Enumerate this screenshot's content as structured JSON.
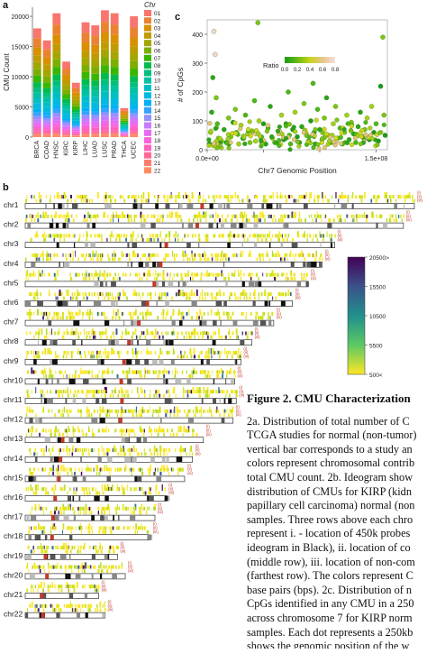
{
  "panels": {
    "a": "a",
    "b": "b",
    "c": "c"
  },
  "chart_data": [
    {
      "type": "bar",
      "stacked": true,
      "categories": [
        "BRCA",
        "COAD",
        "HNSC",
        "KIRC",
        "KIRP",
        "LIHC",
        "LUAD",
        "LUSC",
        "PRAD",
        "THCA",
        "UCEC"
      ],
      "values": [
        18000,
        16000,
        20500,
        12500,
        9000,
        19000,
        18500,
        21000,
        20500,
        4800,
        20000
      ],
      "ylabel": "CMU Count",
      "yticks": [
        "0",
        "5000",
        "10000",
        "15000",
        "20000"
      ],
      "ylim": [
        0,
        21500
      ],
      "legend_title": "Chr",
      "legend_entries": [
        "01",
        "02",
        "03",
        "04",
        "05",
        "06",
        "07",
        "08",
        "09",
        "10",
        "11",
        "12",
        "13",
        "14",
        "15",
        "16",
        "17",
        "18",
        "19",
        "20",
        "21",
        "22"
      ],
      "legend_colors": [
        "#f8766d",
        "#ea8331",
        "#d89000",
        "#c09b00",
        "#a3a500",
        "#7cae00",
        "#39b600",
        "#00bb4e",
        "#00bf7d",
        "#00c1a3",
        "#00bfc4",
        "#00bae0",
        "#00b0f6",
        "#35a2ff",
        "#9590ff",
        "#c77cff",
        "#e76bf3",
        "#fa62db",
        "#ff62bc",
        "#ff6a98",
        "#ff7c6f",
        "#ff8b63"
      ]
    },
    {
      "type": "scatter",
      "xlabel": "Chr7 Genomic Position",
      "ylabel": "# of CpGs",
      "xticks": [
        "0.0e+00",
        "5.0e+07",
        "1.0e+08",
        "1.5e+08"
      ],
      "yticks": [
        "0",
        "100",
        "200",
        "300",
        "400"
      ],
      "xlim": [
        0,
        160000000
      ],
      "ylim": [
        0,
        450
      ],
      "legend_title": "Ratio",
      "legend_ticks": [
        "0.0",
        "0.2",
        "0.4",
        "0.6",
        "0.8"
      ],
      "points": [
        [
          2000000,
          20
        ],
        [
          3000000,
          60
        ],
        [
          4000000,
          130
        ],
        [
          5000000,
          250
        ],
        [
          6000000,
          410
        ],
        [
          7000000,
          330
        ],
        [
          8000000,
          180
        ],
        [
          9000000,
          90
        ],
        [
          10000000,
          40
        ],
        [
          11000000,
          15
        ],
        [
          13000000,
          30
        ],
        [
          15000000,
          70
        ],
        [
          17000000,
          25
        ],
        [
          19000000,
          110
        ],
        [
          21000000,
          45
        ],
        [
          23000000,
          95
        ],
        [
          25000000,
          140
        ],
        [
          26000000,
          60
        ],
        [
          28000000,
          20
        ],
        [
          30000000,
          85
        ],
        [
          32000000,
          40
        ],
        [
          34000000,
          120
        ],
        [
          36000000,
          55
        ],
        [
          38000000,
          25
        ],
        [
          40000000,
          65
        ],
        [
          42000000,
          170
        ],
        [
          43000000,
          30
        ],
        [
          44000000,
          60
        ],
        [
          45000000,
          440
        ],
        [
          46000000,
          100
        ],
        [
          48000000,
          35
        ],
        [
          50000000,
          90
        ],
        [
          52000000,
          20
        ],
        [
          54000000,
          75
        ],
        [
          56000000,
          150
        ],
        [
          58000000,
          40
        ],
        [
          60000000,
          25
        ],
        [
          64000000,
          60
        ],
        [
          66000000,
          120
        ],
        [
          68000000,
          35
        ],
        [
          70000000,
          90
        ],
        [
          72000000,
          200
        ],
        [
          73000000,
          50
        ],
        [
          74000000,
          20
        ],
        [
          76000000,
          70
        ],
        [
          78000000,
          130
        ],
        [
          80000000,
          45
        ],
        [
          82000000,
          25
        ],
        [
          84000000,
          80
        ],
        [
          86000000,
          160
        ],
        [
          88000000,
          55
        ],
        [
          90000000,
          30
        ],
        [
          92000000,
          100
        ],
        [
          94000000,
          230
        ],
        [
          95000000,
          60
        ],
        [
          96000000,
          20
        ],
        [
          98000000,
          140
        ],
        [
          100000000,
          70
        ],
        [
          102000000,
          35
        ],
        [
          104000000,
          110
        ],
        [
          106000000,
          180
        ],
        [
          108000000,
          50
        ],
        [
          110000000,
          25
        ],
        [
          112000000,
          90
        ],
        [
          114000000,
          150
        ],
        [
          116000000,
          40
        ],
        [
          118000000,
          75
        ],
        [
          120000000,
          20
        ],
        [
          122000000,
          60
        ],
        [
          124000000,
          120
        ],
        [
          126000000,
          35
        ],
        [
          128000000,
          95
        ],
        [
          130000000,
          55
        ],
        [
          132000000,
          25
        ],
        [
          134000000,
          80
        ],
        [
          136000000,
          130
        ],
        [
          138000000,
          45
        ],
        [
          140000000,
          70
        ],
        [
          142000000,
          110
        ],
        [
          144000000,
          35
        ],
        [
          146000000,
          150
        ],
        [
          148000000,
          60
        ],
        [
          150000000,
          90
        ],
        [
          152000000,
          30
        ],
        [
          154000000,
          220
        ],
        [
          156000000,
          390
        ],
        [
          157000000,
          120
        ],
        [
          158000000,
          50
        ]
      ]
    },
    {
      "type": "heatmap",
      "chromosomes": [
        "chr1",
        "chr2",
        "chr3",
        "chr4",
        "chr5",
        "chr6",
        "chr7",
        "chr8",
        "chr9",
        "chr10",
        "chr11",
        "chr12",
        "chr13",
        "chr14",
        "chr15",
        "chr16",
        "chr17",
        "chr18",
        "chr19",
        "chr20",
        "chr21",
        "chr22"
      ],
      "lengths_mb": [
        249,
        242,
        198,
        190,
        181,
        171,
        159,
        145,
        138,
        134,
        135,
        133,
        114,
        107,
        102,
        90,
        83,
        80,
        59,
        64,
        47,
        51
      ],
      "row_labels": [
        "(i)",
        "(ii)",
        "(iii)"
      ],
      "scale_ticks": [
        "20500>",
        "15500",
        "10500",
        "5500",
        "500<"
      ]
    }
  ],
  "caption": {
    "title": "Figure 2. CMU Characterization",
    "lines": [
      "2a. Distribution of total number of C",
      "TCGA studies for normal (non-tumor)",
      "vertical bar corresponds to a study an",
      "colors represent chromosomal contrib",
      "total CMU count. 2b. Ideogram show",
      "distribution of CMUs for KIRP (kidn",
      "papillary cell carcinoma) normal (non",
      "samples. Three rows above each chro",
      "represent i. - location of 450k probes",
      "ideogram in Black), ii. location of co",
      "(middle row), iii. location of non-com",
      "(farthest row). The colors represent C",
      "base pairs (bps). 2c. Distribution of n",
      "CpGs identified in any CMU in a 250",
      "across chromosome 7 for KIRP norm",
      "samples. Each dot represents a 250kb",
      "shows the genomic position of the w"
    ]
  },
  "colors": {
    "viridis_top": "#440154",
    "viridis_mid": "#21908c",
    "viridis_low": "#fde725",
    "centromere": "#c0392b"
  }
}
